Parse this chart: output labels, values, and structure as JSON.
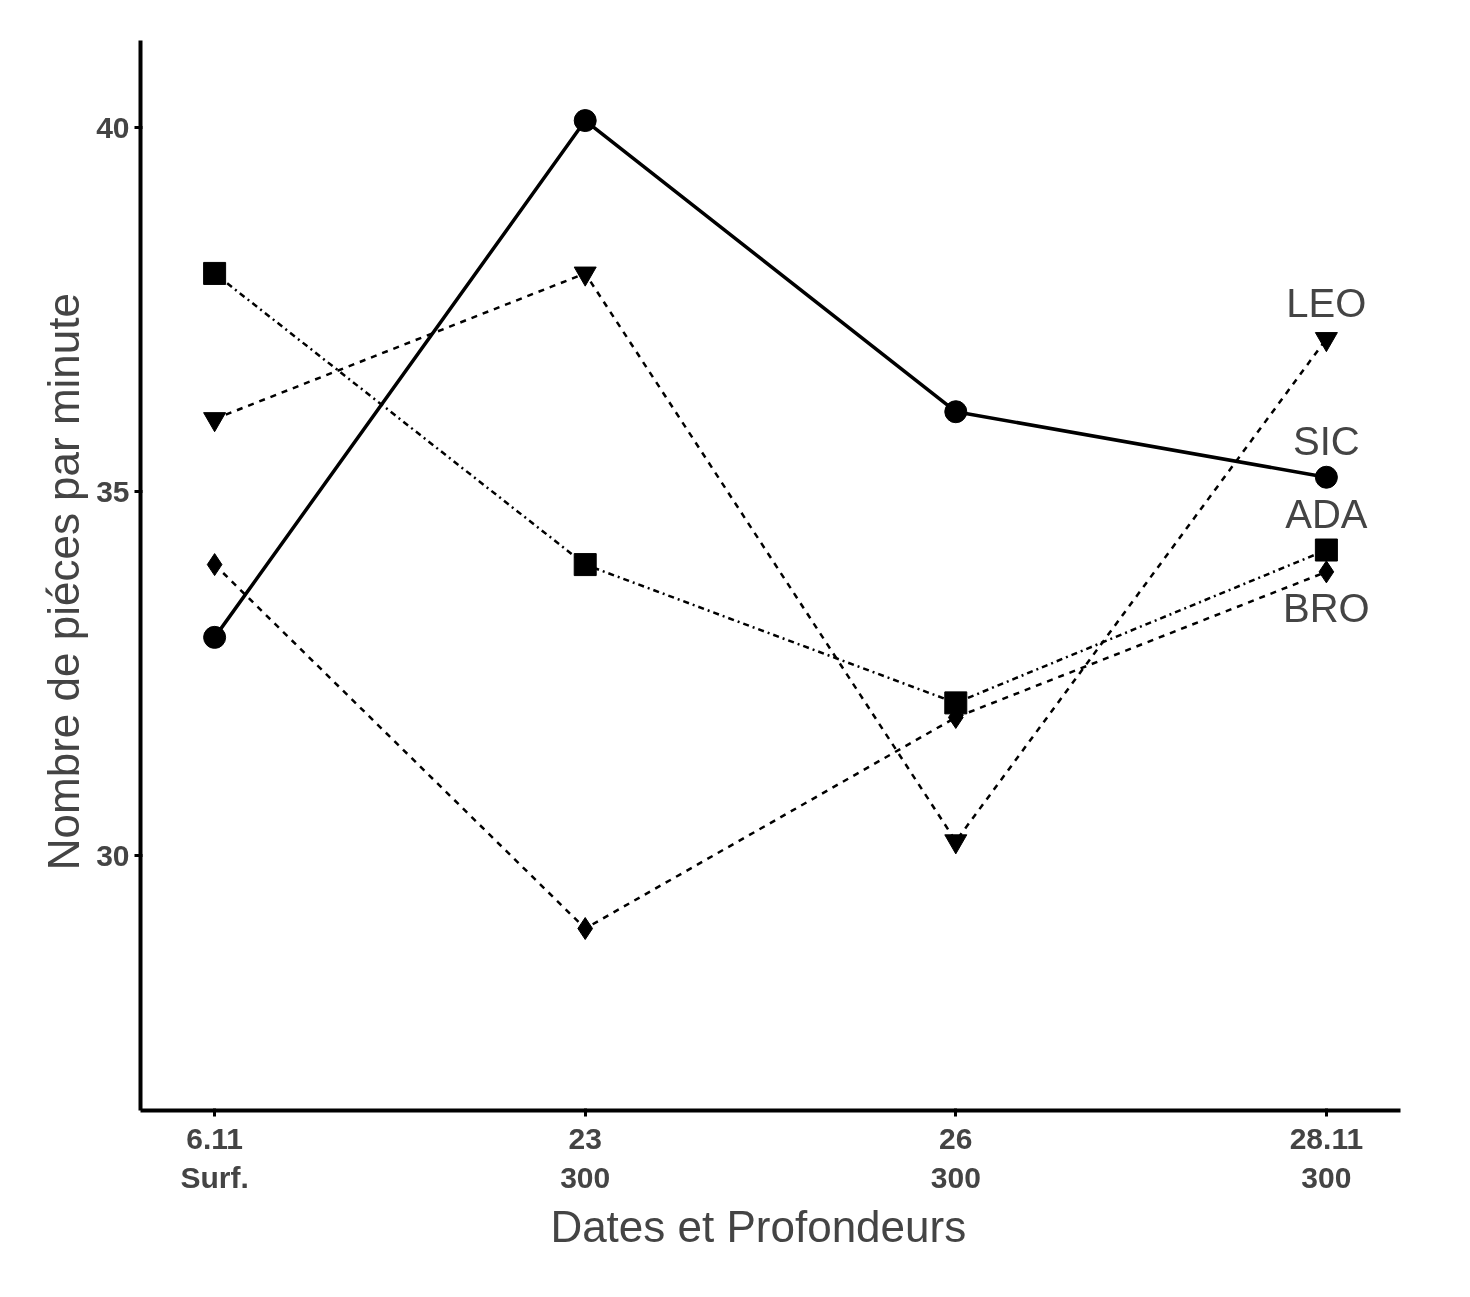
{
  "chart_data": {
    "type": "line",
    "xlabel": "Dates  et  Profondeurs",
    "ylabel": "Nombre de piéces  par minute",
    "categories": [
      "6.11\nSurf.",
      "23\n300",
      "26\n300",
      "28.11\n300"
    ],
    "ylim": [
      26.5,
      41.2
    ],
    "yticks": [
      30,
      35,
      40
    ],
    "grid": false,
    "legend": false,
    "series": [
      {
        "name": "SIC",
        "color": "#000000",
        "marker": "circle",
        "line_style": "solid",
        "values": [
          33.0,
          40.1,
          36.1,
          35.2
        ]
      },
      {
        "name": "LEO",
        "color": "#000000",
        "marker": "triangle_down",
        "line_style": "dashed",
        "values": [
          36.0,
          38.0,
          30.2,
          37.1
        ]
      },
      {
        "name": "ADA",
        "color": "#000000",
        "marker": "square",
        "line_style": "dashdot",
        "values": [
          38.0,
          34.0,
          32.1,
          34.2
        ]
      },
      {
        "name": "BRO",
        "color": "#000000",
        "marker": "diamond",
        "line_style": "dashed",
        "values": [
          34.0,
          29.0,
          31.9,
          33.9
        ]
      }
    ]
  }
}
